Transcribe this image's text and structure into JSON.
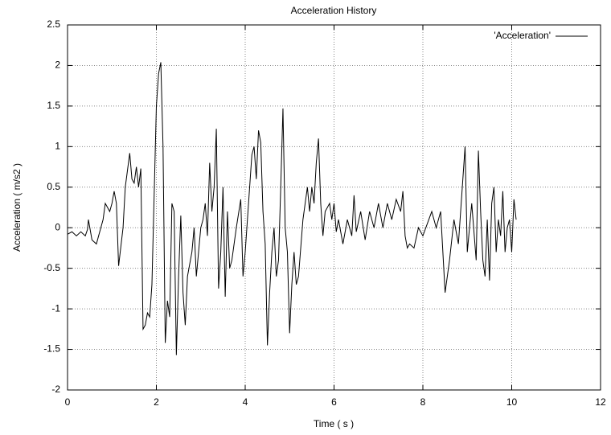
{
  "chart_data": {
    "type": "line",
    "title": "Acceleration History",
    "x_label": "Time ( s )",
    "y_label": "Acceleration ( m/s2 )",
    "x": [
      0.0,
      0.1,
      0.2,
      0.3,
      0.4,
      0.45,
      0.47,
      0.55,
      0.65,
      0.7,
      0.8,
      0.85,
      0.95,
      1.0,
      1.05,
      1.1,
      1.15,
      1.25,
      1.3,
      1.4,
      1.45,
      1.5,
      1.55,
      1.6,
      1.65,
      1.7,
      1.75,
      1.8,
      1.85,
      1.9,
      1.95,
      2.0,
      2.05,
      2.1,
      2.15,
      2.2,
      2.25,
      2.3,
      2.35,
      2.4,
      2.45,
      2.5,
      2.55,
      2.6,
      2.65,
      2.7,
      2.8,
      2.85,
      2.9,
      2.95,
      3.0,
      3.05,
      3.1,
      3.15,
      3.2,
      3.25,
      3.3,
      3.35,
      3.4,
      3.45,
      3.5,
      3.55,
      3.6,
      3.65,
      3.7,
      3.8,
      3.9,
      3.95,
      4.0,
      4.1,
      4.15,
      4.2,
      4.25,
      4.3,
      4.35,
      4.4,
      4.45,
      4.5,
      4.55,
      4.6,
      4.65,
      4.7,
      4.75,
      4.8,
      4.85,
      4.9,
      4.95,
      5.0,
      5.05,
      5.1,
      5.15,
      5.2,
      5.3,
      5.4,
      5.45,
      5.5,
      5.55,
      5.6,
      5.65,
      5.7,
      5.75,
      5.8,
      5.9,
      5.95,
      6.0,
      6.05,
      6.1,
      6.2,
      6.3,
      6.4,
      6.45,
      6.5,
      6.6,
      6.7,
      6.8,
      6.9,
      7.0,
      7.1,
      7.2,
      7.3,
      7.4,
      7.5,
      7.55,
      7.6,
      7.65,
      7.7,
      7.8,
      7.9,
      8.0,
      8.1,
      8.2,
      8.3,
      8.4,
      8.5,
      8.6,
      8.7,
      8.8,
      8.9,
      8.95,
      9.0,
      9.1,
      9.2,
      9.25,
      9.3,
      9.35,
      9.4,
      9.45,
      9.5,
      9.55,
      9.6,
      9.65,
      9.7,
      9.75,
      9.8,
      9.85,
      9.9,
      9.95,
      10.0,
      10.05,
      10.1
    ],
    "series": [
      {
        "name": "'Acceleration'",
        "color": "#000000",
        "values": [
          -0.08,
          -0.05,
          -0.1,
          -0.05,
          -0.1,
          -0.02,
          0.1,
          -0.15,
          -0.2,
          -0.1,
          0.1,
          0.3,
          0.2,
          0.3,
          0.45,
          0.3,
          -0.47,
          0.0,
          0.5,
          0.92,
          0.6,
          0.55,
          0.75,
          0.5,
          0.73,
          -1.25,
          -1.2,
          -1.05,
          -1.1,
          -0.7,
          0.4,
          1.5,
          1.9,
          2.04,
          1.0,
          -1.42,
          -0.9,
          -1.1,
          0.3,
          0.2,
          -1.57,
          -0.6,
          0.15,
          -0.8,
          -1.2,
          -0.6,
          -0.3,
          0.0,
          -0.6,
          -0.3,
          0.0,
          0.1,
          0.3,
          -0.1,
          0.8,
          0.2,
          0.5,
          1.22,
          -0.75,
          -0.3,
          0.5,
          -0.85,
          0.2,
          -0.5,
          -0.4,
          0.0,
          0.35,
          -0.6,
          -0.3,
          0.5,
          0.9,
          1.0,
          0.6,
          1.2,
          1.05,
          0.2,
          -0.2,
          -1.45,
          -0.8,
          -0.3,
          0.0,
          -0.6,
          -0.4,
          0.5,
          1.47,
          0.0,
          -0.3,
          -1.3,
          -0.7,
          -0.3,
          -0.7,
          -0.6,
          0.1,
          0.5,
          0.2,
          0.5,
          0.3,
          0.8,
          1.1,
          0.3,
          -0.1,
          0.2,
          0.3,
          0.1,
          0.3,
          -0.05,
          0.1,
          -0.2,
          0.1,
          -0.1,
          0.4,
          -0.05,
          0.2,
          -0.15,
          0.2,
          0.0,
          0.3,
          0.0,
          0.3,
          0.1,
          0.35,
          0.2,
          0.45,
          -0.1,
          -0.25,
          -0.2,
          -0.25,
          0.0,
          -0.1,
          0.05,
          0.2,
          0.0,
          0.2,
          -0.8,
          -0.4,
          0.1,
          -0.2,
          0.6,
          1.0,
          -0.3,
          0.3,
          -0.4,
          0.95,
          0.2,
          -0.4,
          -0.6,
          0.1,
          -0.65,
          0.3,
          0.5,
          -0.3,
          0.1,
          -0.1,
          0.45,
          -0.3,
          0.0,
          0.1,
          -0.3,
          0.35,
          0.1
        ]
      }
    ],
    "xlim": [
      0,
      12
    ],
    "xticks": [
      0,
      2,
      4,
      6,
      8,
      10,
      12
    ],
    "ylim": [
      -2,
      2.5
    ],
    "yticks": [
      -2,
      -1.5,
      -1,
      -0.5,
      0,
      0.5,
      1,
      1.5,
      2,
      2.5
    ],
    "grid": true,
    "legend": "top-right"
  }
}
